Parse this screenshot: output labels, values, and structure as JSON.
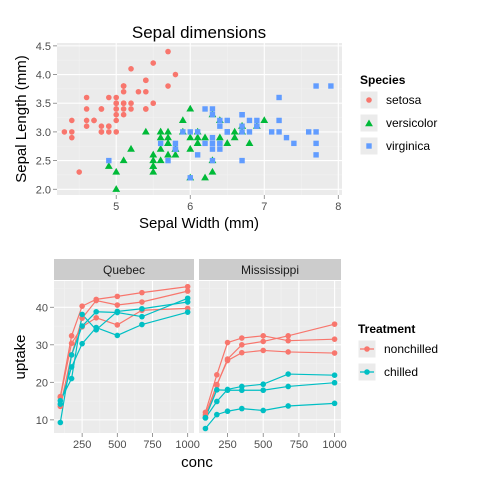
{
  "colors": {
    "panel_bg": "#ebebeb",
    "grid_major": "#ffffff",
    "strip_bg": "#cccccc",
    "red": "#f8766d",
    "green": "#00ba38",
    "blue": "#619cff",
    "teal": "#00bfc4"
  },
  "chart_data": [
    {
      "type": "scatter",
      "title": "Sepal dimensions",
      "xlabel": "Sepal Width (mm)",
      "ylabel": "Sepal Length (mm)",
      "xlim": [
        4.2,
        8.05
      ],
      "ylim": [
        1.9,
        4.55
      ],
      "xticks": [
        5,
        6,
        7,
        8
      ],
      "yticks": [
        2.0,
        2.5,
        3.0,
        3.5,
        4.0,
        4.5
      ],
      "xtick_labels": [
        "5",
        "6",
        "7",
        "8"
      ],
      "ytick_labels": [
        "2.0",
        "2.5",
        "3.0",
        "3.5",
        "4.0",
        "4.5"
      ],
      "grid": true,
      "legend": {
        "title": "Species",
        "position": "right",
        "entries": [
          {
            "label": "setosa",
            "shape": "circle",
            "color": "#f8766d"
          },
          {
            "label": "versicolor",
            "shape": "triangle",
            "color": "#00ba38"
          },
          {
            "label": "virginica",
            "shape": "square",
            "color": "#619cff"
          }
        ]
      },
      "series": [
        {
          "name": "setosa",
          "shape": "circle",
          "color": "#f8766d",
          "points": [
            [
              5.1,
              3.5
            ],
            [
              4.9,
              3.0
            ],
            [
              4.7,
              3.2
            ],
            [
              4.6,
              3.1
            ],
            [
              5.0,
              3.6
            ],
            [
              5.4,
              3.9
            ],
            [
              4.6,
              3.4
            ],
            [
              5.0,
              3.4
            ],
            [
              4.4,
              2.9
            ],
            [
              4.9,
              3.1
            ],
            [
              5.4,
              3.7
            ],
            [
              4.8,
              3.4
            ],
            [
              4.8,
              3.0
            ],
            [
              4.3,
              3.0
            ],
            [
              5.8,
              4.0
            ],
            [
              5.7,
              4.4
            ],
            [
              5.4,
              3.9
            ],
            [
              5.1,
              3.5
            ],
            [
              5.7,
              3.8
            ],
            [
              5.1,
              3.8
            ],
            [
              5.4,
              3.4
            ],
            [
              5.1,
              3.7
            ],
            [
              4.6,
              3.6
            ],
            [
              5.1,
              3.3
            ],
            [
              4.8,
              3.4
            ],
            [
              5.0,
              3.0
            ],
            [
              5.0,
              3.4
            ],
            [
              5.2,
              3.5
            ],
            [
              5.2,
              3.4
            ],
            [
              4.7,
              3.2
            ],
            [
              4.8,
              3.1
            ],
            [
              5.4,
              3.4
            ],
            [
              5.2,
              4.1
            ],
            [
              5.5,
              4.2
            ],
            [
              4.9,
              3.1
            ],
            [
              5.0,
              3.2
            ],
            [
              5.5,
              3.5
            ],
            [
              4.9,
              3.6
            ],
            [
              4.4,
              3.0
            ],
            [
              5.1,
              3.4
            ],
            [
              5.0,
              3.5
            ],
            [
              4.5,
              2.3
            ],
            [
              4.4,
              3.2
            ],
            [
              5.0,
              3.5
            ],
            [
              5.1,
              3.8
            ],
            [
              4.8,
              3.0
            ],
            [
              5.1,
              3.8
            ],
            [
              4.6,
              3.2
            ],
            [
              5.3,
              3.7
            ],
            [
              5.0,
              3.3
            ]
          ]
        },
        {
          "name": "versicolor",
          "shape": "triangle",
          "color": "#00ba38",
          "points": [
            [
              7.0,
              3.2
            ],
            [
              6.4,
              3.2
            ],
            [
              6.9,
              3.1
            ],
            [
              5.5,
              2.3
            ],
            [
              6.5,
              2.8
            ],
            [
              5.7,
              2.8
            ],
            [
              6.3,
              3.3
            ],
            [
              4.9,
              2.4
            ],
            [
              6.6,
              2.9
            ],
            [
              5.2,
              2.7
            ],
            [
              5.0,
              2.0
            ],
            [
              5.9,
              3.0
            ],
            [
              6.0,
              2.2
            ],
            [
              6.1,
              2.9
            ],
            [
              5.6,
              2.9
            ],
            [
              6.7,
              3.1
            ],
            [
              5.6,
              3.0
            ],
            [
              5.8,
              2.7
            ],
            [
              6.2,
              2.2
            ],
            [
              5.6,
              2.5
            ],
            [
              5.9,
              3.2
            ],
            [
              6.1,
              2.8
            ],
            [
              6.3,
              2.5
            ],
            [
              6.1,
              2.8
            ],
            [
              6.4,
              2.9
            ],
            [
              6.6,
              3.0
            ],
            [
              6.8,
              2.8
            ],
            [
              6.7,
              3.0
            ],
            [
              6.0,
              2.9
            ],
            [
              5.7,
              2.6
            ],
            [
              5.5,
              2.4
            ],
            [
              5.5,
              2.4
            ],
            [
              5.8,
              2.7
            ],
            [
              6.0,
              2.7
            ],
            [
              5.4,
              3.0
            ],
            [
              6.0,
              3.4
            ],
            [
              6.7,
              3.1
            ],
            [
              6.3,
              2.3
            ],
            [
              5.6,
              3.0
            ],
            [
              5.5,
              2.5
            ],
            [
              5.5,
              2.6
            ],
            [
              6.1,
              3.0
            ],
            [
              5.8,
              2.6
            ],
            [
              5.0,
              2.3
            ],
            [
              5.6,
              2.7
            ],
            [
              5.7,
              3.0
            ],
            [
              5.7,
              2.9
            ],
            [
              6.2,
              2.9
            ],
            [
              5.1,
              2.5
            ],
            [
              5.7,
              2.8
            ]
          ]
        },
        {
          "name": "virginica",
          "shape": "square",
          "color": "#619cff",
          "points": [
            [
              6.3,
              3.3
            ],
            [
              5.8,
              2.7
            ],
            [
              7.1,
              3.0
            ],
            [
              6.3,
              2.9
            ],
            [
              6.5,
              3.0
            ],
            [
              7.6,
              3.0
            ],
            [
              4.9,
              2.5
            ],
            [
              7.3,
              2.9
            ],
            [
              6.7,
              2.5
            ],
            [
              7.2,
              3.6
            ],
            [
              6.5,
              3.2
            ],
            [
              6.4,
              2.7
            ],
            [
              6.8,
              3.0
            ],
            [
              5.7,
              2.5
            ],
            [
              5.8,
              2.8
            ],
            [
              6.4,
              3.2
            ],
            [
              6.5,
              3.0
            ],
            [
              7.7,
              3.8
            ],
            [
              7.7,
              2.6
            ],
            [
              6.0,
              2.2
            ],
            [
              6.9,
              3.2
            ],
            [
              5.6,
              2.8
            ],
            [
              7.7,
              2.8
            ],
            [
              6.3,
              2.7
            ],
            [
              6.7,
              3.3
            ],
            [
              7.2,
              3.2
            ],
            [
              6.2,
              2.8
            ],
            [
              6.1,
              3.0
            ],
            [
              6.4,
              2.8
            ],
            [
              7.2,
              3.0
            ],
            [
              7.4,
              2.8
            ],
            [
              7.9,
              3.8
            ],
            [
              6.4,
              2.8
            ],
            [
              6.3,
              2.8
            ],
            [
              6.1,
              2.6
            ],
            [
              7.7,
              3.0
            ],
            [
              6.3,
              3.4
            ],
            [
              6.4,
              3.1
            ],
            [
              6.0,
              3.0
            ],
            [
              6.9,
              3.1
            ],
            [
              6.7,
              3.1
            ],
            [
              6.9,
              3.1
            ],
            [
              5.8,
              2.7
            ],
            [
              6.8,
              3.2
            ],
            [
              6.7,
              3.3
            ],
            [
              6.7,
              3.0
            ],
            [
              6.3,
              2.5
            ],
            [
              6.5,
              3.0
            ],
            [
              6.2,
              3.4
            ],
            [
              5.9,
              3.0
            ]
          ]
        }
      ]
    },
    {
      "type": "line",
      "facets": [
        "Quebec",
        "Mississippi"
      ],
      "xlabel": "conc",
      "ylabel": "uptake",
      "xlim": [
        50,
        1045
      ],
      "ylim": [
        6.5,
        47
      ],
      "xticks": [
        250,
        500,
        750,
        1000
      ],
      "yticks": [
        10,
        20,
        30,
        40
      ],
      "xtick_labels": [
        "250",
        "500",
        "750",
        "1000"
      ],
      "ytick_labels": [
        "10",
        "20",
        "30",
        "40"
      ],
      "grid": true,
      "legend": {
        "title": "Treatment",
        "position": "right",
        "entries": [
          {
            "label": "nonchilled",
            "color": "#f8766d"
          },
          {
            "label": "chilled",
            "color": "#00bfc4"
          }
        ]
      },
      "x": [
        95,
        175,
        250,
        350,
        500,
        675,
        1000
      ],
      "series": [
        {
          "facet": "Quebec",
          "treatment": "nonchilled",
          "color": "#f8766d",
          "values": [
            16.0,
            30.4,
            34.8,
            37.2,
            35.3,
            39.2,
            39.7
          ]
        },
        {
          "facet": "Quebec",
          "treatment": "nonchilled",
          "color": "#f8766d",
          "values": [
            13.6,
            27.3,
            37.1,
            41.8,
            40.6,
            41.4,
            44.3
          ]
        },
        {
          "facet": "Quebec",
          "treatment": "nonchilled",
          "color": "#f8766d",
          "values": [
            16.2,
            32.4,
            40.3,
            42.1,
            42.9,
            43.9,
            45.5
          ]
        },
        {
          "facet": "Quebec",
          "treatment": "chilled",
          "color": "#00bfc4",
          "values": [
            14.2,
            24.1,
            30.3,
            34.6,
            32.5,
            35.4,
            38.7
          ]
        },
        {
          "facet": "Quebec",
          "treatment": "chilled",
          "color": "#00bfc4",
          "values": [
            9.3,
            27.3,
            35.0,
            38.8,
            38.6,
            37.5,
            42.4
          ]
        },
        {
          "facet": "Quebec",
          "treatment": "chilled",
          "color": "#00bfc4",
          "values": [
            15.1,
            21.0,
            38.1,
            34.0,
            38.9,
            39.6,
            41.4
          ]
        },
        {
          "facet": "Mississippi",
          "treatment": "nonchilled",
          "color": "#f8766d",
          "values": [
            10.6,
            19.2,
            26.2,
            30.0,
            30.9,
            32.4,
            35.5
          ]
        },
        {
          "facet": "Mississippi",
          "treatment": "nonchilled",
          "color": "#f8766d",
          "values": [
            12.0,
            22.0,
            30.6,
            31.8,
            32.4,
            31.1,
            31.5
          ]
        },
        {
          "facet": "Mississippi",
          "treatment": "nonchilled",
          "color": "#f8766d",
          "values": [
            11.3,
            19.4,
            25.8,
            27.9,
            28.5,
            28.1,
            27.8
          ]
        },
        {
          "facet": "Mississippi",
          "treatment": "chilled",
          "color": "#00bfc4",
          "values": [
            10.5,
            14.9,
            18.1,
            18.9,
            19.5,
            22.2,
            21.9
          ]
        },
        {
          "facet": "Mississippi",
          "treatment": "chilled",
          "color": "#00bfc4",
          "values": [
            7.7,
            11.4,
            12.3,
            13.0,
            12.5,
            13.7,
            14.4
          ]
        },
        {
          "facet": "Mississippi",
          "treatment": "chilled",
          "color": "#00bfc4",
          "values": [
            10.6,
            18.0,
            17.9,
            17.9,
            17.9,
            18.9,
            19.9
          ]
        }
      ]
    }
  ]
}
